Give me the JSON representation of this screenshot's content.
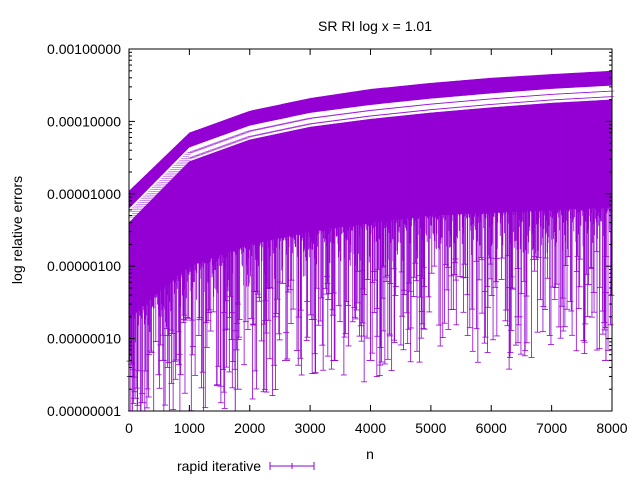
{
  "chart_data": {
    "type": "scatter",
    "title": "SR RI log x = 1.01",
    "xlabel": "n",
    "ylabel": "log relative errors",
    "xlim": [
      0,
      8000
    ],
    "ylim": [
      1e-08,
      0.001
    ],
    "y_scale": "log",
    "x_ticks": [
      "0",
      "1000",
      "2000",
      "3000",
      "4000",
      "5000",
      "6000",
      "7000",
      "8000"
    ],
    "y_ticks": [
      "0.00000001",
      "0.00000010",
      "0.00000100",
      "0.00001000",
      "0.00010000",
      "0.00100000"
    ],
    "grid": false,
    "legend_position": "bottom-left",
    "series": [
      {
        "name": "rapid iterative",
        "color": "#9400d3",
        "style": "errorbars",
        "center_trend": [
          {
            "x": 0,
            "y": 5e-06
          },
          {
            "x": 1000,
            "y": 3.5e-05
          },
          {
            "x": 2000,
            "y": 7e-05
          },
          {
            "x": 3000,
            "y": 0.000105
          },
          {
            "x": 4000,
            "y": 0.000135
          },
          {
            "x": 5000,
            "y": 0.000165
          },
          {
            "x": 6000,
            "y": 0.000195
          },
          {
            "x": 7000,
            "y": 0.000225
          },
          {
            "x": 8000,
            "y": 0.00025
          }
        ],
        "upper_trend": [
          {
            "x": 0,
            "y": 1.1e-05
          },
          {
            "x": 1000,
            "y": 7e-05
          },
          {
            "x": 2000,
            "y": 0.00014
          },
          {
            "x": 3000,
            "y": 0.00021
          },
          {
            "x": 4000,
            "y": 0.00028
          },
          {
            "x": 5000,
            "y": 0.00034
          },
          {
            "x": 6000,
            "y": 0.0004
          },
          {
            "x": 7000,
            "y": 0.00045
          },
          {
            "x": 8000,
            "y": 0.0005
          }
        ],
        "lower_trend": [
          {
            "x": 0,
            "y": 2e-07
          },
          {
            "x": 1000,
            "y": 1e-06
          },
          {
            "x": 2000,
            "y": 2e-06
          },
          {
            "x": 3000,
            "y": 3e-06
          },
          {
            "x": 4000,
            "y": 4e-06
          },
          {
            "x": 5000,
            "y": 5e-06
          },
          {
            "x": 6000,
            "y": 5.5e-06
          },
          {
            "x": 7000,
            "y": 6e-06
          },
          {
            "x": 8000,
            "y": 6.5e-06
          }
        ],
        "notable_low_points": [
          {
            "x": 30,
            "y": 3e-08
          },
          {
            "x": 100,
            "y": 1.5e-08
          },
          {
            "x": 220,
            "y": 1.3e-08
          },
          {
            "x": 560,
            "y": 5e-08
          },
          {
            "x": 1760,
            "y": 1e-08
          },
          {
            "x": 1800,
            "y": 2e-08
          },
          {
            "x": 2600,
            "y": 5e-08
          },
          {
            "x": 3400,
            "y": 5e-08
          },
          {
            "x": 4000,
            "y": 5e-08
          },
          {
            "x": 6450,
            "y": 2e-07
          },
          {
            "x": 7900,
            "y": 5e-08
          }
        ]
      }
    ]
  }
}
